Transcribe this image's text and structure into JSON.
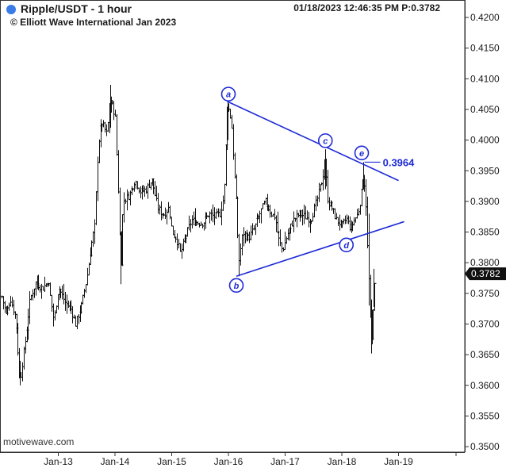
{
  "header": {
    "title": "Ripple/USDT - 1 hour",
    "copyright": "© Elliott Wave International Jan 2023",
    "timestamp": "01/18/2023 12:46:35 PM  P:0.3782",
    "symbol_color": "#3a7be8"
  },
  "watermark": "motivewave.com",
  "colors": {
    "wave_lines": "#1f2bd6",
    "bars": "#111111",
    "last_price_bg": "#111111"
  },
  "chart_data": {
    "type": "ohlc",
    "y_axis": {
      "range": [
        0.3495,
        0.4225
      ],
      "ticks": [
        "0.4200",
        "0.4150",
        "0.4100",
        "0.4050",
        "0.4000",
        "0.3950",
        "0.3900",
        "0.3850",
        "0.3800",
        "0.3750",
        "0.3700",
        "0.3650",
        "0.3600",
        "0.3550",
        "0.3500"
      ],
      "position": "right"
    },
    "x_axis": {
      "unit": "hour (Jan 2023)",
      "range": [
        12.0,
        19.5
      ],
      "ticks": [
        {
          "label": "Jan-13",
          "t": 13
        },
        {
          "label": "Jan-14",
          "t": 14
        },
        {
          "label": "Jan-15",
          "t": 15
        },
        {
          "label": "Jan-16",
          "t": 16
        },
        {
          "label": "Jan-17",
          "t": 17
        },
        {
          "label": "Jan-18",
          "t": 18
        },
        {
          "label": "Jan-19",
          "t": 19
        }
      ]
    },
    "price_path": [
      [
        12.0,
        0.3745
      ],
      [
        12.08,
        0.3715
      ],
      [
        12.15,
        0.3742
      ],
      [
        12.25,
        0.371
      ],
      [
        12.32,
        0.3605
      ],
      [
        12.42,
        0.3675
      ],
      [
        12.5,
        0.374
      ],
      [
        12.6,
        0.3768
      ],
      [
        12.72,
        0.3758
      ],
      [
        12.82,
        0.377
      ],
      [
        12.92,
        0.3705
      ],
      [
        13.0,
        0.376
      ],
      [
        13.12,
        0.3735
      ],
      [
        13.22,
        0.3725
      ],
      [
        13.3,
        0.37
      ],
      [
        13.4,
        0.3728
      ],
      [
        13.5,
        0.3775
      ],
      [
        13.58,
        0.383
      ],
      [
        13.64,
        0.386
      ],
      [
        13.7,
        0.399
      ],
      [
        13.76,
        0.403
      ],
      [
        13.85,
        0.401
      ],
      [
        13.92,
        0.4065
      ],
      [
        14.0,
        0.404
      ],
      [
        14.06,
        0.3905
      ],
      [
        14.1,
        0.3785
      ],
      [
        14.14,
        0.39
      ],
      [
        14.25,
        0.391
      ],
      [
        14.35,
        0.3935
      ],
      [
        14.45,
        0.3915
      ],
      [
        14.55,
        0.392
      ],
      [
        14.65,
        0.3935
      ],
      [
        14.75,
        0.389
      ],
      [
        14.85,
        0.3878
      ],
      [
        14.95,
        0.389
      ],
      [
        15.0,
        0.385
      ],
      [
        15.08,
        0.384
      ],
      [
        15.15,
        0.3815
      ],
      [
        15.25,
        0.3845
      ],
      [
        15.35,
        0.387
      ],
      [
        15.45,
        0.3865
      ],
      [
        15.55,
        0.3865
      ],
      [
        15.65,
        0.388
      ],
      [
        15.75,
        0.3875
      ],
      [
        15.85,
        0.388
      ],
      [
        15.92,
        0.391
      ],
      [
        15.98,
        0.406
      ],
      [
        16.05,
        0.403
      ],
      [
        16.1,
        0.395
      ],
      [
        16.14,
        0.389
      ],
      [
        16.18,
        0.38
      ],
      [
        16.25,
        0.385
      ],
      [
        16.35,
        0.384
      ],
      [
        16.45,
        0.3855
      ],
      [
        16.55,
        0.388
      ],
      [
        16.65,
        0.39
      ],
      [
        16.75,
        0.388
      ],
      [
        16.82,
        0.3875
      ],
      [
        16.88,
        0.384
      ],
      [
        16.95,
        0.382
      ],
      [
        17.05,
        0.385
      ],
      [
        17.15,
        0.387
      ],
      [
        17.25,
        0.388
      ],
      [
        17.35,
        0.3875
      ],
      [
        17.45,
        0.387
      ],
      [
        17.55,
        0.39
      ],
      [
        17.65,
        0.3935
      ],
      [
        17.7,
        0.396
      ],
      [
        17.75,
        0.39
      ],
      [
        17.82,
        0.389
      ],
      [
        17.9,
        0.387
      ],
      [
        18.0,
        0.386
      ],
      [
        18.08,
        0.3872
      ],
      [
        18.15,
        0.3855
      ],
      [
        18.22,
        0.387
      ],
      [
        18.28,
        0.388
      ],
      [
        18.34,
        0.391
      ],
      [
        18.38,
        0.3948
      ],
      [
        18.42,
        0.39
      ],
      [
        18.45,
        0.382
      ],
      [
        18.48,
        0.376
      ],
      [
        18.52,
        0.366
      ],
      [
        18.56,
        0.3745
      ],
      [
        18.6,
        0.3782
      ]
    ],
    "annotations": [
      {
        "label": "a",
        "t": 16.0,
        "price": 0.4075
      },
      {
        "label": "b",
        "t": 16.14,
        "price": 0.3763
      },
      {
        "label": "c",
        "t": 17.71,
        "price": 0.3999
      },
      {
        "label": "d",
        "t": 18.08,
        "price": 0.3829
      },
      {
        "label": "e",
        "t": 18.35,
        "price": 0.3979
      }
    ],
    "trendlines": [
      {
        "from": [
          15.98,
          0.4063
        ],
        "to": [
          19.0,
          0.3934
        ]
      },
      {
        "from": [
          16.14,
          0.3778
        ],
        "to": [
          19.1,
          0.3867
        ]
      }
    ],
    "target": {
      "value": "0.3964",
      "price": 0.3964,
      "from_t": 18.4,
      "to_t": 18.68
    },
    "last_price": {
      "value": "0.3782",
      "price": 0.3782
    }
  }
}
